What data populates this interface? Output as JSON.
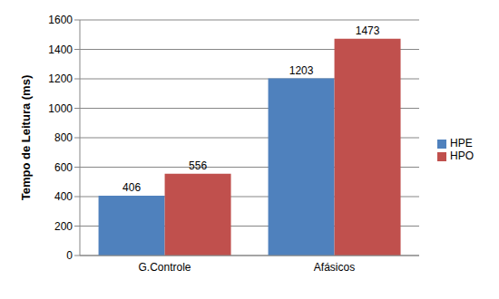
{
  "chart_data": {
    "type": "bar",
    "y_label": "Tempo de Leitura (ms)",
    "categories": [
      "G.Controle",
      "Afásicos"
    ],
    "series": [
      {
        "name": "HPE",
        "color": "#4f81bd",
        "values": [
          406,
          1203
        ]
      },
      {
        "name": "HPO",
        "color": "#c0504d",
        "values": [
          556,
          1473
        ]
      }
    ],
    "ylim": [
      0,
      1600
    ],
    "yticks": [
      0,
      200,
      400,
      600,
      800,
      1000,
      1200,
      1400,
      1600
    ],
    "grid": true,
    "legend": "right",
    "data_labels": true
  }
}
